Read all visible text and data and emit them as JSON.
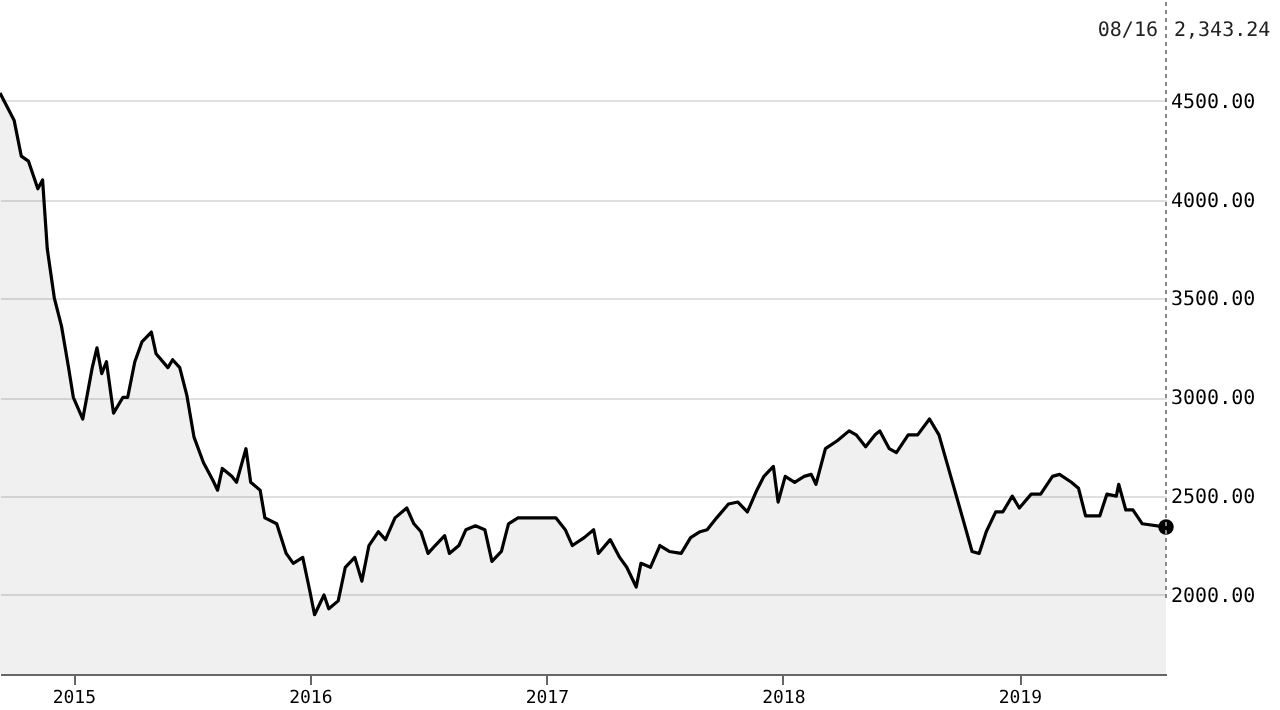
{
  "chart_data": {
    "type": "area",
    "x": [
      2014.69,
      2014.75,
      2014.78,
      2014.81,
      2014.85,
      2014.87,
      2014.89,
      2014.92,
      2014.95,
      2014.98,
      2015.0,
      2015.04,
      2015.08,
      2015.1,
      2015.12,
      2015.14,
      2015.17,
      2015.21,
      2015.23,
      2015.26,
      2015.29,
      2015.33,
      2015.35,
      2015.4,
      2015.42,
      2015.45,
      2015.48,
      2015.51,
      2015.55,
      2015.59,
      2015.61,
      2015.63,
      2015.67,
      2015.69,
      2015.73,
      2015.75,
      2015.79,
      2015.81,
      2015.86,
      2015.9,
      2015.93,
      2015.97,
      2016.0,
      2016.02,
      2016.06,
      2016.08,
      2016.12,
      2016.15,
      2016.19,
      2016.22,
      2016.25,
      2016.29,
      2016.32,
      2016.36,
      2016.41,
      2016.44,
      2016.47,
      2016.5,
      2016.53,
      2016.57,
      2016.59,
      2016.63,
      2016.66,
      2016.7,
      2016.74,
      2016.77,
      2016.81,
      2016.84,
      2016.88,
      2016.99,
      2017.04,
      2017.08,
      2017.11,
      2017.16,
      2017.2,
      2017.22,
      2017.27,
      2017.31,
      2017.34,
      2017.38,
      2017.4,
      2017.44,
      2017.48,
      2017.52,
      2017.57,
      2017.61,
      2017.65,
      2017.68,
      2017.72,
      2017.77,
      2017.81,
      2017.85,
      2017.89,
      2017.92,
      2017.96,
      2017.98,
      2018.01,
      2018.05,
      2018.09,
      2018.12,
      2018.14,
      2018.18,
      2018.23,
      2018.28,
      2018.31,
      2018.35,
      2018.39,
      2018.41,
      2018.45,
      2018.48,
      2018.53,
      2018.57,
      2018.62,
      2018.66,
      2018.71,
      2018.76,
      2018.8,
      2018.83,
      2018.86,
      2018.9,
      2018.93,
      2018.97,
      2019.0,
      2019.05,
      2019.09,
      2019.14,
      2019.17,
      2019.22,
      2019.25,
      2019.28,
      2019.34,
      2019.37,
      2019.41,
      2019.42,
      2019.45,
      2019.48,
      2019.52,
      2019.62
    ],
    "series": [
      {
        "color": "#000000",
        "values": [
          4540,
          4400,
          4220,
          4195,
          4055,
          4100,
          3750,
          3500,
          3360,
          3150,
          3000,
          2890,
          3150,
          3250,
          3120,
          3180,
          2920,
          3000,
          3000,
          3180,
          3280,
          3330,
          3220,
          3150,
          3190,
          3150,
          3010,
          2800,
          2670,
          2580,
          2530,
          2640,
          2600,
          2570,
          2740,
          2570,
          2530,
          2390,
          2360,
          2210,
          2160,
          2190,
          2020,
          1900,
          2000,
          1930,
          1970,
          2140,
          2190,
          2070,
          2250,
          2320,
          2280,
          2390,
          2440,
          2360,
          2320,
          2210,
          2250,
          2300,
          2210,
          2250,
          2330,
          2350,
          2330,
          2170,
          2220,
          2360,
          2390,
          2390,
          2390,
          2330,
          2250,
          2290,
          2330,
          2210,
          2280,
          2190,
          2140,
          2040,
          2160,
          2140,
          2250,
          2220,
          2210,
          2290,
          2320,
          2330,
          2390,
          2460,
          2470,
          2420,
          2530,
          2600,
          2650,
          2470,
          2600,
          2570,
          2600,
          2610,
          2560,
          2740,
          2780,
          2830,
          2810,
          2750,
          2810,
          2830,
          2740,
          2720,
          2810,
          2810,
          2890,
          2810,
          2600,
          2390,
          2220,
          2210,
          2320,
          2420,
          2420,
          2500,
          2440,
          2510,
          2510,
          2600,
          2610,
          2570,
          2540,
          2400,
          2400,
          2510,
          2500,
          2560,
          2430,
          2430,
          2360,
          2343.24
        ]
      },
      {
        "type": "scatter",
        "color": "#000000",
        "marker": "circle",
        "x": [
          2019.62
        ],
        "values": [
          2343.24
        ]
      }
    ],
    "xlim": [
      2014.69,
      2019.62
    ],
    "xticks": [
      2015,
      2016,
      2017,
      2018,
      2019
    ],
    "ylim": [
      1600,
      5000
    ],
    "yticks": [
      {
        "value": 2000,
        "label": "2000.00"
      },
      {
        "value": 2500,
        "label": "2500.00"
      },
      {
        "value": 3000,
        "label": "3000.00"
      },
      {
        "value": 3500,
        "label": "3500.00"
      },
      {
        "value": 4000,
        "label": "4000.00"
      },
      {
        "value": 4500,
        "label": "4500.00"
      }
    ],
    "grid": "y",
    "ref_lines": [
      {
        "axis": "x",
        "value": 2019.62,
        "line_style": "dotted",
        "color": "#888888"
      }
    ],
    "annotations": [
      "08/16",
      "2,343.24"
    ]
  }
}
